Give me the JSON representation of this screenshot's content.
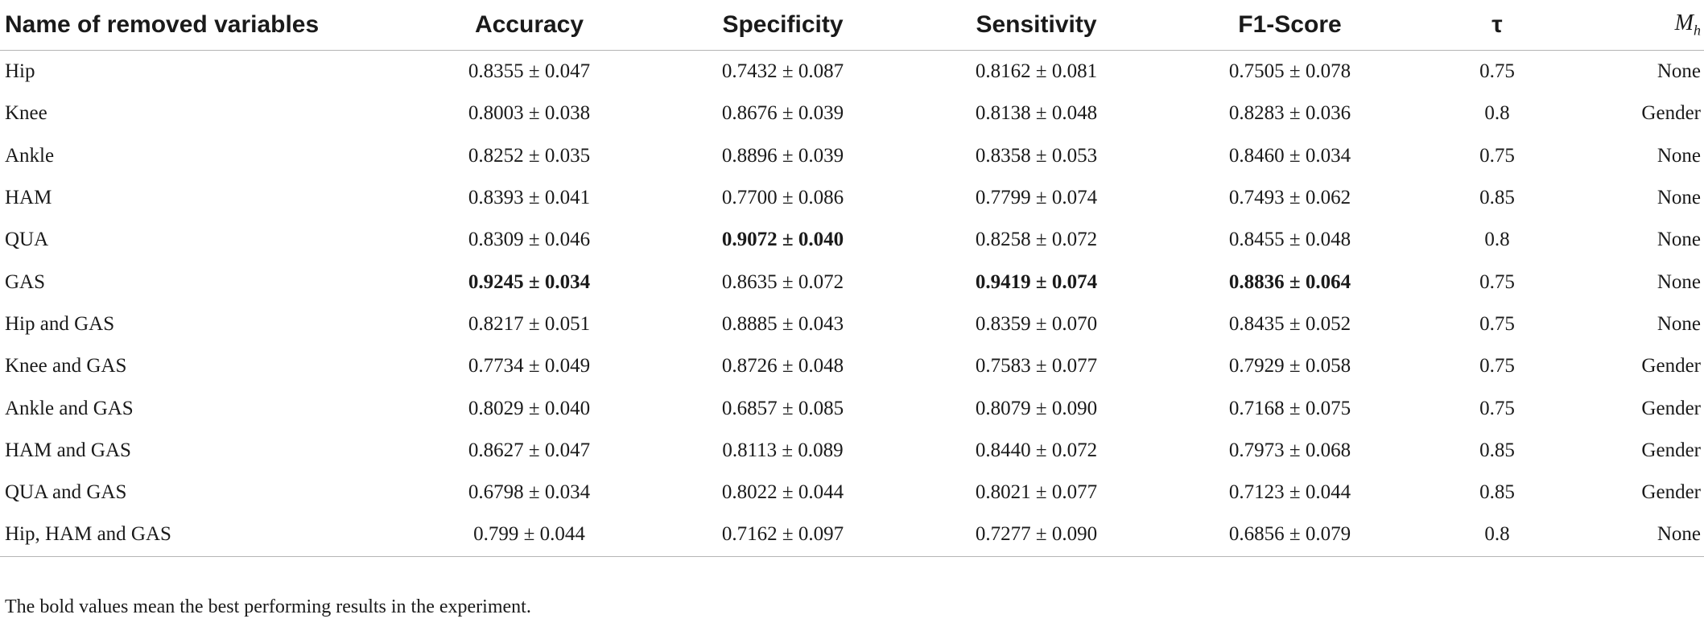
{
  "table": {
    "columns": [
      "Name of removed variables",
      "Accuracy",
      "Specificity",
      "Sensitivity",
      "F1-Score",
      "τ",
      "M",
      "h"
    ],
    "rows": [
      {
        "name": "Hip",
        "accuracy": "0.8355 ± 0.047",
        "specificity": "0.7432 ± 0.087",
        "sensitivity": "0.8162 ± 0.081",
        "f1": "0.7505 ± 0.078",
        "tau": "0.75",
        "mh": "None"
      },
      {
        "name": "Knee",
        "accuracy": "0.8003 ± 0.038",
        "specificity": "0.8676 ± 0.039",
        "sensitivity": "0.8138 ± 0.048",
        "f1": "0.8283 ± 0.036",
        "tau": "0.8",
        "mh": "Gender"
      },
      {
        "name": "Ankle",
        "accuracy": "0.8252 ± 0.035",
        "specificity": "0.8896 ± 0.039",
        "sensitivity": "0.8358 ± 0.053",
        "f1": "0.8460 ± 0.034",
        "tau": "0.75",
        "mh": "None"
      },
      {
        "name": "HAM",
        "accuracy": "0.8393 ± 0.041",
        "specificity": "0.7700 ± 0.086",
        "sensitivity": "0.7799 ± 0.074",
        "f1": "0.7493 ± 0.062",
        "tau": "0.85",
        "mh": "None"
      },
      {
        "name": "QUA",
        "accuracy": "0.8309 ± 0.046",
        "specificity": "0.9072 ± 0.040",
        "sensitivity": "0.8258 ± 0.072",
        "f1": "0.8455 ± 0.048",
        "tau": "0.8",
        "mh": "None"
      },
      {
        "name": "GAS",
        "accuracy": "0.9245 ± 0.034",
        "specificity": "0.8635 ± 0.072",
        "sensitivity": "0.9419 ± 0.074",
        "f1": "0.8836 ± 0.064",
        "tau": "0.75",
        "mh": "None"
      },
      {
        "name": "Hip and GAS",
        "accuracy": "0.8217 ± 0.051",
        "specificity": "0.8885 ± 0.043",
        "sensitivity": "0.8359 ± 0.070",
        "f1": "0.8435 ± 0.052",
        "tau": "0.75",
        "mh": "None"
      },
      {
        "name": "Knee and GAS",
        "accuracy": "0.7734 ± 0.049",
        "specificity": "0.8726 ± 0.048",
        "sensitivity": "0.7583 ± 0.077",
        "f1": "0.7929 ± 0.058",
        "tau": "0.75",
        "mh": "Gender"
      },
      {
        "name": "Ankle and GAS",
        "accuracy": "0.8029 ± 0.040",
        "specificity": "0.6857 ± 0.085",
        "sensitivity": "0.8079 ± 0.090",
        "f1": "0.7168 ± 0.075",
        "tau": "0.75",
        "mh": "Gender"
      },
      {
        "name": "HAM and GAS",
        "accuracy": "0.8627 ± 0.047",
        "specificity": "0.8113 ± 0.089",
        "sensitivity": "0.8440 ± 0.072",
        "f1": "0.7973 ± 0.068",
        "tau": "0.85",
        "mh": "Gender"
      },
      {
        "name": "QUA and GAS",
        "accuracy": "0.6798 ± 0.034",
        "specificity": "0.8022 ± 0.044",
        "sensitivity": "0.8021 ± 0.077",
        "f1": "0.7123 ± 0.044",
        "tau": "0.85",
        "mh": "Gender"
      },
      {
        "name": "Hip, HAM and GAS",
        "accuracy": "0.799 ± 0.044",
        "specificity": "0.7162 ± 0.097",
        "sensitivity": "0.7277 ± 0.090",
        "f1": "0.6856 ± 0.079",
        "tau": "0.8",
        "mh": "None"
      }
    ],
    "bold_cells": [
      {
        "row": 4,
        "col": "specificity"
      },
      {
        "row": 5,
        "col": "accuracy"
      },
      {
        "row": 5,
        "col": "sensitivity"
      },
      {
        "row": 5,
        "col": "f1"
      }
    ]
  },
  "footnote": "The bold values mean the best performing results in the experiment."
}
